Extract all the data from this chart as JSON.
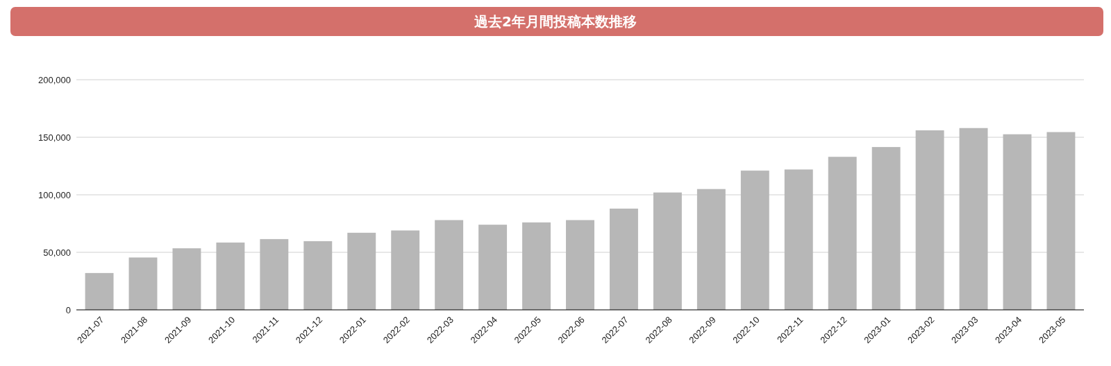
{
  "chart_data": {
    "type": "bar",
    "title": "過去2年月間投稿本数推移",
    "categories": [
      "2021-07",
      "2021-08",
      "2021-09",
      "2021-10",
      "2021-11",
      "2021-12",
      "2022-01",
      "2022-02",
      "2022-03",
      "2022-04",
      "2022-05",
      "2022-06",
      "2022-07",
      "2022-08",
      "2022-09",
      "2022-10",
      "2022-11",
      "2022-12",
      "2023-01",
      "2023-02",
      "2023-03",
      "2023-04",
      "2023-05"
    ],
    "values": [
      32000,
      45500,
      53500,
      58500,
      61500,
      59700,
      67000,
      69000,
      78000,
      74000,
      76000,
      78000,
      88000,
      102000,
      105000,
      121000,
      122000,
      133000,
      141500,
      156000,
      158000,
      152600,
      154500
    ],
    "color": "#b7b7b7",
    "ylim": [
      0,
      200000
    ],
    "yticks": [
      {
        "value": 0,
        "label": "0"
      },
      {
        "value": 50000,
        "label": "50,000"
      },
      {
        "value": 100000,
        "label": "100,000"
      },
      {
        "value": 150000,
        "label": "150,000"
      },
      {
        "value": 200000,
        "label": "200,000"
      }
    ],
    "grid": "y"
  }
}
